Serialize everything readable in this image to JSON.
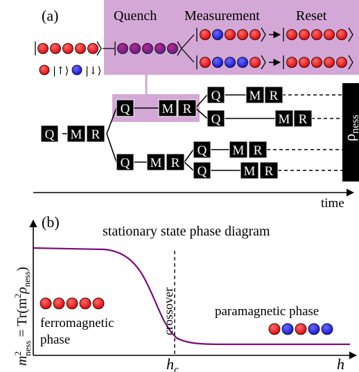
{
  "panel_a": {
    "label": "(a)",
    "legend": {
      "spin_up": "|↑⟩",
      "spin_down": "|↓⟩",
      "up_color": "#ee1111",
      "down_color": "#2222dd"
    },
    "inset": {
      "background": "#d4a8d6",
      "quench": "Quench",
      "measurement": "Measurement",
      "reset": "Reset",
      "initial_state": [
        "up",
        "up",
        "up",
        "up",
        "up"
      ],
      "quenched_state": [
        "mixed",
        "mixed",
        "mixed",
        "mixed",
        "mixed"
      ],
      "outcome_1": [
        "up",
        "down",
        "up",
        "up",
        "up"
      ],
      "outcome_2": [
        "up",
        "down",
        "down",
        "down",
        "up"
      ],
      "reset_state": [
        "up",
        "up",
        "up",
        "up",
        "up"
      ]
    },
    "blocks": {
      "q": "Q",
      "m": "M",
      "r": "R"
    },
    "rho": "ρ",
    "rho_sub": "ness",
    "time_label": "time"
  },
  "panel_b": {
    "label": "(b)",
    "title": "stationary state phase diagram",
    "ylabel_m": "m",
    "ylabel_sup": "2",
    "ylabel_sub": "ness",
    "ylabel_rest": " = Tr(m",
    "ylabel_rest_sup": "2",
    "ylabel_rho": "ρ",
    "ylabel_rho_sub": "ness",
    "ylabel_close": ")",
    "crossover": "crossover",
    "ferro_line1": "ferromagnetic",
    "ferro_line2": "phase",
    "para": "paramagnetic phase",
    "ferro_spins": [
      "up",
      "up",
      "up",
      "up",
      "up"
    ],
    "para_spins": [
      "up",
      "down",
      "up",
      "down",
      "down"
    ],
    "hc": "h",
    "hc_sub": "c",
    "h": "h",
    "curve_color": "#7a0a7a"
  }
}
